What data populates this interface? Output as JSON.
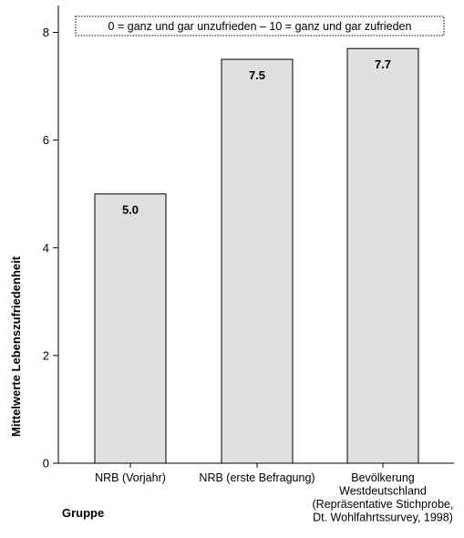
{
  "chart_data": {
    "type": "bar",
    "categories": [
      [
        "NRB (Vorjahr)"
      ],
      [
        "NRB (erste Befragung)"
      ],
      [
        "Bevölkerung",
        "Westdeutschland",
        "(Repräsentative Stichprobe,",
        "Dt. Wohlfahrtssurvey, 1998)"
      ]
    ],
    "values": [
      5.0,
      7.5,
      7.7
    ],
    "data_labels": [
      "5.0",
      "7.5",
      "7.7"
    ],
    "ylabel": "Mittelwerte Lebenszufriedenheit",
    "xlabel": "Gruppe",
    "ylim": [
      0,
      8.5
    ],
    "yticks": [
      0,
      2,
      4,
      6,
      8
    ],
    "ytick_labels": [
      "0",
      "2",
      "4",
      "6",
      "8"
    ],
    "annotation": "0 = ganz und gar unzufrieden – 10 = ganz und gar zufrieden",
    "colors": {
      "bar_fill": "#e0e0e0",
      "bar_stroke": "#000000"
    },
    "grid": false
  }
}
